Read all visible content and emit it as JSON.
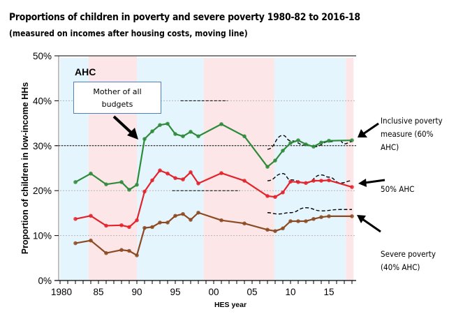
{
  "title": "Proportions of children in poverty and severe poverty 1980-82 to 2016-18",
  "subtitle": "(measured on incomes after housing costs, moving line)",
  "chart_data": {
    "type": "line",
    "title": "Proportions of children in poverty and severe poverty 1980-82 to 2016-18",
    "subtitle": "(measured on incomes after housing costs, moving line)",
    "panel_label": "AHC",
    "xlabel": "HES year",
    "ylabel": "Proportion of children in low-income HHs",
    "xlim": [
      1980,
      2018
    ],
    "ylim": [
      0,
      50
    ],
    "x_ticks": [
      1980,
      1985,
      1990,
      1995,
      2000,
      2005,
      2010,
      2015
    ],
    "x_tick_labels": [
      "1980",
      "85",
      "90",
      "95",
      "00",
      "05",
      "10",
      "15"
    ],
    "y_ticks": [
      0,
      10,
      20,
      30,
      40,
      50
    ],
    "y_tick_labels": [
      "0%",
      "10%",
      "20%",
      "30%",
      "40%",
      "50%"
    ],
    "grid": true,
    "background_bands": [
      {
        "from": 1980,
        "to": 1983.7,
        "color": "#e5f5fd"
      },
      {
        "from": 1983.7,
        "to": 1990,
        "color": "#fde6e8"
      },
      {
        "from": 1990,
        "to": 1998.7,
        "color": "#e5f5fd"
      },
      {
        "from": 1998.7,
        "to": 2007.9,
        "color": "#fde6e8"
      },
      {
        "from": 2007.9,
        "to": 2017.2,
        "color": "#e5f5fd"
      },
      {
        "from": 2017.2,
        "to": 2018.2,
        "color": "#fde6e8"
      }
    ],
    "reference_lines": [
      {
        "y": 30,
        "from": 1980,
        "to": 2018,
        "style": "dotted-black"
      },
      {
        "y": 40,
        "from": 1995.7,
        "to": 2001.8,
        "style": "dashed-black"
      },
      {
        "y": 20,
        "from": 1994.6,
        "to": 2003.4,
        "style": "dashed-black"
      }
    ],
    "series": [
      {
        "name": "Inclusive poverty measure (60% AHC)",
        "color": "#2e8b3a",
        "x": [
          1982,
          1984,
          1986,
          1988,
          1989,
          1990,
          1991,
          1992,
          1993,
          1994,
          1995,
          1996,
          1997,
          1998,
          2001,
          2004,
          2007,
          2008,
          2009,
          2010,
          2011,
          2012,
          2013,
          2014,
          2015,
          2018
        ],
        "values": [
          21.9,
          23.8,
          21.4,
          21.9,
          20.2,
          21.3,
          31.5,
          33.2,
          34.6,
          34.9,
          32.6,
          32.1,
          33.1,
          32.1,
          34.8,
          32.1,
          25.3,
          26.7,
          28.9,
          30.6,
          31.2,
          30.3,
          29.8,
          30.7,
          31.1,
          31.2
        ]
      },
      {
        "name": "50% AHC",
        "color": "#e3232c",
        "x": [
          1982,
          1984,
          1986,
          1988,
          1989,
          1990,
          1991,
          1992,
          1993,
          1994,
          1995,
          1996,
          1997,
          1998,
          2001,
          2004,
          2007,
          2008,
          2009,
          2010,
          2011,
          2012,
          2013,
          2014,
          2015,
          2018
        ],
        "values": [
          13.7,
          14.4,
          12.2,
          12.3,
          11.9,
          13.4,
          19.8,
          22.3,
          24.5,
          23.8,
          22.8,
          22.5,
          24.1,
          21.6,
          23.9,
          22.2,
          18.8,
          18.6,
          19.6,
          22.0,
          21.9,
          21.7,
          22.2,
          22.2,
          22.3,
          20.8
        ]
      },
      {
        "name": "Severe poverty (40% AHC)",
        "color": "#8b4a22",
        "x": [
          1982,
          1984,
          1986,
          1988,
          1989,
          1990,
          1991,
          1992,
          1993,
          1994,
          1995,
          1996,
          1997,
          1998,
          2001,
          2004,
          2007,
          2008,
          2009,
          2010,
          2011,
          2012,
          2013,
          2014,
          2015,
          2018
        ],
        "values": [
          8.3,
          8.9,
          6.1,
          6.8,
          6.6,
          5.6,
          11.7,
          11.9,
          12.9,
          12.9,
          14.4,
          14.8,
          13.5,
          15.1,
          13.4,
          12.7,
          11.3,
          11.0,
          11.6,
          13.2,
          13.2,
          13.2,
          13.7,
          14.1,
          14.3,
          14.3
        ]
      }
    ],
    "projection_series": [
      {
        "name": "Inclusive poverty projection",
        "x": [
          2007,
          2009,
          2010,
          2012,
          2013.2,
          2015,
          2016.4,
          2017,
          2018
        ],
        "values": [
          29.2,
          32.3,
          31.1,
          30.1,
          29.8,
          30.9,
          31.2,
          30.4,
          30.9
        ]
      },
      {
        "name": "50% AHC projection",
        "x": [
          2007,
          2009,
          2010,
          2012,
          2014,
          2015,
          2016.5,
          2018
        ],
        "values": [
          22.2,
          23.8,
          22.4,
          21.7,
          23.5,
          23.0,
          21.7,
          22.2
        ]
      },
      {
        "name": "Severe poverty projection",
        "x": [
          2007,
          2008.4,
          2010,
          2012,
          2014,
          2016.5,
          2018
        ],
        "values": [
          15.1,
          14.8,
          15.1,
          16.2,
          15.5,
          15.8,
          15.8
        ]
      }
    ],
    "annotations": [
      {
        "text": "Mother of all budgets",
        "target_x": 1990.5,
        "target_y": 31
      },
      {
        "text": "Inclusive poverty measure (60% AHC)",
        "target_series": 0
      },
      {
        "text": "50% AHC",
        "target_series": 1
      },
      {
        "text": "Severe poverty (40% AHC)",
        "target_series": 2
      }
    ]
  },
  "annotations": {
    "callout_line1": "Mother of all",
    "callout_line2": "budgets",
    "label_60_line1": "Inclusive poverty",
    "label_60_line2": "measure (60%",
    "label_60_line3": "AHC)",
    "label_50": "50% AHC",
    "label_40_line1": "Severe poverty",
    "label_40_line2": "(40% AHC)"
  }
}
